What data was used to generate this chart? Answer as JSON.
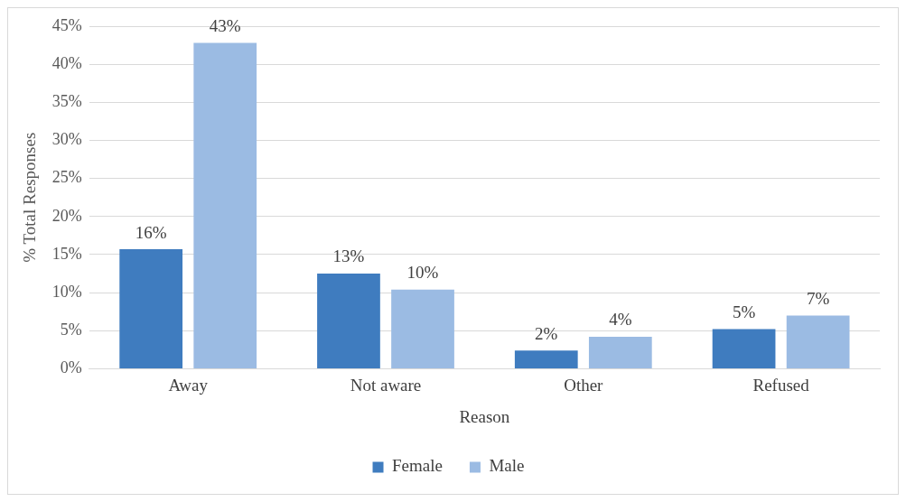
{
  "chart_data": {
    "type": "bar",
    "xlabel": "Reason",
    "ylabel": "% Total Responses",
    "categories": [
      "Away",
      "Not aware",
      "Other",
      "Refused"
    ],
    "series": [
      {
        "name": "Female",
        "color": "#3f7cbf",
        "values": [
          15.7,
          12.5,
          2.4,
          5.2
        ],
        "value_labels": [
          "16%",
          "13%",
          "2%",
          "5%"
        ]
      },
      {
        "name": "Male",
        "color": "#9bbbe3",
        "values": [
          42.8,
          10.4,
          4.2,
          7.0
        ],
        "value_labels": [
          "43%",
          "10%",
          "4%",
          "7%"
        ]
      }
    ],
    "ylim": [
      0,
      45
    ],
    "yticks": [
      {
        "value": 0,
        "label": "0%"
      },
      {
        "value": 5,
        "label": "5%"
      },
      {
        "value": 10,
        "label": "10%"
      },
      {
        "value": 15,
        "label": "15%"
      },
      {
        "value": 20,
        "label": "20%"
      },
      {
        "value": 25,
        "label": "25%"
      },
      {
        "value": 30,
        "label": "30%"
      },
      {
        "value": 35,
        "label": "35%"
      },
      {
        "value": 40,
        "label": "40%"
      },
      {
        "value": 45,
        "label": "45%"
      }
    ],
    "grid": "y",
    "legend": "bottom"
  }
}
